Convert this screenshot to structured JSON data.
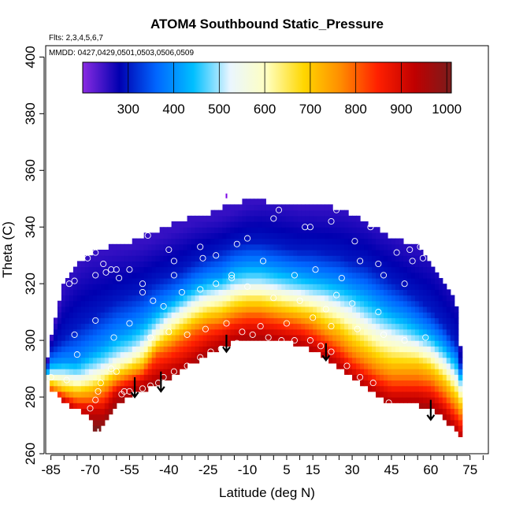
{
  "chart_data": {
    "type": "heatmap",
    "title": "ATOM4 Southbound Static_Pressure",
    "subtitle_flights": "Flts: 2,3,4,5,6,7",
    "subtitle_dates": "MMDD: 0427,0429,0501,0503,0506,0509",
    "xlabel": "Latitude (deg N)",
    "ylabel": "Theta (C)",
    "xlim": [
      -87,
      82
    ],
    "ylim": [
      260,
      404
    ],
    "x_ticks": [
      -85,
      -70,
      -55,
      -40,
      -25,
      -10,
      5,
      15,
      30,
      45,
      60,
      75
    ],
    "y_ticks": [
      260,
      280,
      300,
      320,
      340,
      360,
      380,
      400
    ],
    "colorbar": {
      "range": [
        200,
        1010
      ],
      "ticks": [
        300,
        400,
        500,
        600,
        700,
        800,
        900,
        1000
      ],
      "colors": [
        "#8a2be2",
        "#0000b0",
        "#0066ff",
        "#00bfff",
        "#eaf6ff",
        "#ffffbf",
        "#ffd700",
        "#ff8c00",
        "#ff2000",
        "#c00000",
        "#7a1c1c"
      ]
    },
    "field_description": "Static pressure (hPa) as a function of latitude and potential temperature",
    "boundary": {
      "lat": [
        -87,
        -85,
        -80,
        -75,
        -70,
        -68,
        -65,
        -60,
        -55,
        -50,
        -45,
        -40,
        -35,
        -30,
        -25,
        -20,
        -15,
        -10,
        -5,
        0,
        5,
        10,
        15,
        20,
        25,
        30,
        35,
        40,
        45,
        50,
        55,
        60,
        65,
        70,
        72
      ],
      "bottom": [
        288,
        283,
        279,
        276,
        274,
        268,
        270,
        278,
        281,
        283,
        285,
        287,
        290,
        293,
        296,
        298,
        300,
        301,
        301,
        300,
        300,
        299,
        297,
        294,
        291,
        288,
        284,
        281,
        278,
        278,
        278,
        276,
        273,
        268,
        265
      ],
      "top": [
        289,
        300,
        320,
        327,
        330,
        331,
        332,
        333,
        334,
        336,
        338,
        340,
        342,
        343,
        344,
        346,
        348,
        349,
        349,
        348,
        347,
        347,
        347,
        347,
        346,
        344,
        341,
        339,
        336,
        334,
        333,
        327,
        320,
        312,
        288
      ]
    },
    "iso_pressure_levels": [
      900,
      800,
      700,
      600,
      500,
      400,
      300,
      250
    ],
    "iso_pressure_theta": {
      "lat": [
        -87,
        -85,
        -80,
        -75,
        -70,
        -65,
        -60,
        -55,
        -50,
        -45,
        -40,
        -35,
        -30,
        -25,
        -20,
        -15,
        -10,
        -5,
        0,
        5,
        10,
        15,
        20,
        25,
        30,
        35,
        40,
        45,
        50,
        55,
        60,
        65,
        70,
        72
      ],
      "900": [
        282,
        281,
        279,
        276,
        276,
        276,
        282,
        284,
        286,
        289,
        291,
        293,
        296,
        299,
        301,
        303,
        304,
        304,
        303,
        302,
        301,
        299,
        296,
        293,
        289,
        286,
        283,
        281,
        281,
        281,
        280,
        276,
        270,
        267
      ],
      "800": [
        283,
        283,
        281,
        279,
        279,
        281,
        285,
        287,
        289,
        295,
        297,
        300,
        303,
        305,
        306,
        308,
        309,
        309,
        308,
        307,
        306,
        304,
        301,
        298,
        294,
        291,
        288,
        286,
        286,
        286,
        285,
        281,
        275,
        272
      ],
      "700": [
        285,
        285,
        283,
        282,
        283,
        285,
        288,
        290,
        292,
        298,
        301,
        304,
        307,
        309,
        310,
        312,
        313,
        313,
        312,
        311,
        310,
        309,
        306,
        304,
        300,
        297,
        294,
        292,
        292,
        292,
        290,
        286,
        280,
        276
      ],
      "600": [
        286,
        287,
        286,
        285,
        286,
        288,
        291,
        293,
        296,
        301,
        305,
        308,
        311,
        313,
        314,
        316,
        317,
        317,
        316,
        315,
        314,
        313,
        311,
        309,
        306,
        303,
        300,
        298,
        297,
        296,
        294,
        290,
        284,
        280
      ],
      "500": [
        287,
        289,
        289,
        288,
        290,
        292,
        295,
        297,
        300,
        305,
        309,
        312,
        315,
        317,
        318,
        320,
        321,
        321,
        320,
        319,
        318,
        317,
        316,
        314,
        312,
        309,
        306,
        304,
        302,
        300,
        298,
        294,
        288,
        283
      ],
      "400": [
        288,
        292,
        293,
        293,
        296,
        299,
        302,
        304,
        307,
        311,
        314,
        317,
        320,
        322,
        323,
        326,
        327,
        327,
        326,
        325,
        324,
        323,
        322,
        321,
        319,
        317,
        314,
        311,
        309,
        306,
        303,
        299,
        293,
        286
      ],
      "300": [
        289,
        297,
        301,
        305,
        308,
        311,
        314,
        316,
        318,
        321,
        323,
        325,
        328,
        330,
        332,
        334,
        335,
        335,
        334,
        333,
        332,
        332,
        331,
        330,
        328,
        327,
        324,
        321,
        318,
        315,
        311,
        306,
        299,
        288
      ],
      "250": [
        289,
        300,
        320,
        327,
        330,
        331,
        332,
        333,
        334,
        336,
        338,
        340,
        342,
        343,
        344,
        346,
        348,
        349,
        349,
        348,
        347,
        347,
        347,
        347,
        346,
        344,
        341,
        339,
        336,
        334,
        333,
        327,
        320,
        288
      ]
    },
    "observations": {
      "lat": [
        -85,
        -79,
        -75,
        -70,
        -68,
        -67,
        -66,
        -62,
        -60,
        -58,
        -57,
        -55,
        -50,
        -47,
        -44,
        -42,
        -38,
        -33,
        -28,
        -24,
        -20,
        -14,
        -8,
        -2,
        3,
        8,
        14,
        18,
        22,
        28,
        33,
        38,
        44,
        -76,
        -71,
        -68,
        -65,
        -62,
        -60,
        -55,
        -50,
        -46,
        -42,
        -35,
        -28,
        -22,
        -16,
        -10,
        0,
        10,
        20,
        26,
        33,
        40,
        47,
        52,
        57,
        -76,
        -68,
        -61,
        -55,
        -47,
        -40,
        -33,
        -26,
        -18,
        -12,
        -5,
        5,
        15,
        22,
        32,
        42,
        50,
        58,
        -64,
        -50,
        -38,
        -27,
        -16,
        -4,
        8,
        16,
        24,
        30,
        40,
        -78,
        -68,
        -59,
        -48,
        -38,
        -22,
        -10,
        2,
        14,
        24,
        37,
        50,
        56,
        -56,
        -40,
        -28,
        -14,
        0,
        12,
        22,
        31,
        42,
        53
      ],
      "theta": [
        287,
        286,
        295,
        276,
        279,
        282,
        285,
        290,
        289,
        281,
        282,
        282,
        283,
        284,
        285,
        287,
        289,
        291,
        294,
        296,
        297,
        299,
        302,
        301,
        300,
        300,
        300,
        298,
        296,
        291,
        287,
        285,
        278,
        321,
        329,
        331,
        327,
        325,
        325,
        325,
        317,
        314,
        312,
        317,
        318,
        320,
        322,
        319,
        315,
        314,
        311,
        322,
        328,
        327,
        331,
        332,
        329,
        302,
        307,
        301,
        306,
        301,
        303,
        302,
        304,
        306,
        303,
        305,
        306,
        308,
        305,
        304,
        302,
        300,
        301,
        324,
        320,
        323,
        329,
        323,
        328,
        323,
        325,
        316,
        313,
        310,
        320,
        323,
        322,
        337,
        328,
        330,
        336,
        346,
        340,
        346,
        340,
        320,
        333,
        337,
        332,
        333,
        334,
        343,
        340,
        342,
        335,
        323,
        328
      ]
    },
    "arrows": {
      "lat": [
        -53,
        -43,
        -18,
        20,
        60
      ],
      "theta_start": [
        287,
        289,
        302,
        299,
        279
      ],
      "theta_end": [
        280,
        282,
        296,
        293,
        272
      ]
    },
    "edge_markers": {
      "lat": [
        -18,
        71,
        -67
      ],
      "theta": [
        351,
        265,
        268
      ]
    }
  }
}
